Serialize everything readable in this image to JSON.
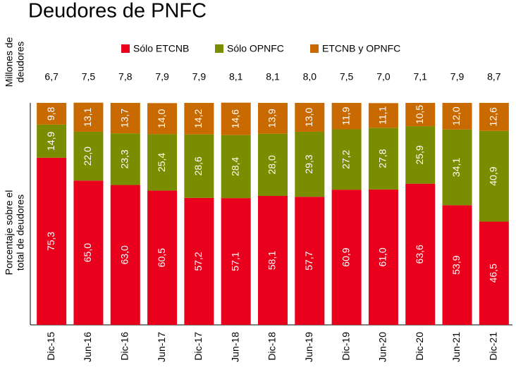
{
  "chart_data": {
    "type": "stacked_bar",
    "title": "Deudores de PNFC",
    "y2_label_lines": [
      "Millones de",
      "deudores"
    ],
    "y_label_lines": [
      "Porcentaje sobre el",
      "total de deudores"
    ],
    "categories": [
      "Dic-15",
      "Jun-16",
      "Dic-16",
      "Jun-17",
      "Dic-17",
      "Jun-18",
      "Dic-18",
      "Jun-19",
      "Dic-19",
      "Jun-20",
      "Dic-20",
      "Jun-21",
      "Dic-21"
    ],
    "series": [
      {
        "name": "Sólo ETCNB",
        "color": "#e8001c",
        "values": [
          75.3,
          65.0,
          63.0,
          60.5,
          57.2,
          57.1,
          58.1,
          57.7,
          60.9,
          61.0,
          63.6,
          53.9,
          46.5
        ],
        "value_labels": [
          "75,3",
          "65,0",
          "63,0",
          "60,5",
          "57,2",
          "57,1",
          "58,1",
          "57,7",
          "60,9",
          "61,0",
          "63,6",
          "53,9",
          "46,5"
        ]
      },
      {
        "name": "Sólo OPNFC",
        "color": "#7a8c00",
        "values": [
          14.9,
          22.0,
          23.3,
          25.4,
          28.6,
          28.4,
          28.0,
          29.3,
          27.2,
          27.8,
          25.9,
          34.1,
          40.9
        ],
        "value_labels": [
          "14,9",
          "22,0",
          "23,3",
          "25,4",
          "28,6",
          "28,4",
          "28,0",
          "29,3",
          "27,2",
          "27,8",
          "25,9",
          "34,1",
          "40,9"
        ]
      },
      {
        "name": "ETCNB y OPNFC",
        "color": "#c96a00",
        "values": [
          9.8,
          13.1,
          13.7,
          14.0,
          14.2,
          14.6,
          13.9,
          13.0,
          11.9,
          11.1,
          10.5,
          12.0,
          12.6
        ],
        "value_labels": [
          "9,8",
          "13,1",
          "13,7",
          "14,0",
          "14,2",
          "14,6",
          "13,9",
          "13,0",
          "11,9",
          "11,1",
          "10,5",
          "12,0",
          "12,6"
        ]
      }
    ],
    "totals": {
      "values": [
        6.7,
        7.5,
        7.8,
        7.9,
        7.9,
        8.1,
        8.1,
        8.0,
        7.5,
        7.0,
        7.1,
        7.9,
        8.7
      ],
      "value_labels": [
        "6,7",
        "7,5",
        "7,8",
        "7,9",
        "7,9",
        "8,1",
        "8,1",
        "8,0",
        "7,5",
        "7,0",
        "7,1",
        "7,9",
        "8,7"
      ]
    },
    "ylim": [
      0,
      100
    ]
  }
}
